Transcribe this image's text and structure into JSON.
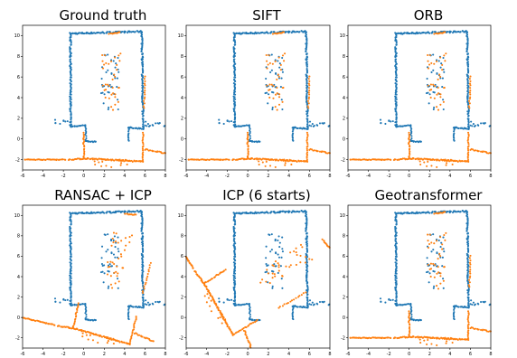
{
  "colors": {
    "reference": "#1f77b4",
    "source": "#ff7f0e"
  },
  "chart_data": [
    {
      "type": "scatter",
      "title": "Ground truth",
      "xlim": [
        -6,
        8
      ],
      "ylim": [
        -3,
        11
      ],
      "xticks": [
        -6,
        -4,
        -2,
        0,
        2,
        4,
        6,
        8
      ],
      "yticks": [
        -2,
        0,
        2,
        4,
        6,
        8,
        10
      ],
      "transform": {
        "rotate_deg": 0,
        "dx": 0,
        "dy": 0,
        "source_visible": true
      }
    },
    {
      "type": "scatter",
      "title": "SIFT",
      "xlim": [
        -6,
        8
      ],
      "ylim": [
        -3,
        11
      ],
      "xticks": [
        -6,
        -4,
        -2,
        0,
        2,
        4,
        6,
        8
      ],
      "yticks": [
        -2,
        0,
        2,
        4,
        6,
        8,
        10
      ],
      "transform": {
        "rotate_deg": 0,
        "dx": 0,
        "dy": 0,
        "source_visible": true
      }
    },
    {
      "type": "scatter",
      "title": "ORB",
      "xlim": [
        -6,
        8
      ],
      "ylim": [
        -3,
        11
      ],
      "xticks": [
        -6,
        -4,
        -2,
        0,
        2,
        4,
        6,
        8
      ],
      "yticks": [
        -2,
        0,
        2,
        4,
        6,
        8,
        10
      ],
      "transform": {
        "rotate_deg": 0,
        "dx": 0,
        "dy": 0,
        "source_visible": true
      }
    },
    {
      "type": "scatter",
      "title": "RANSAC + ICP",
      "xlim": [
        -6,
        8
      ],
      "ylim": [
        -3,
        11
      ],
      "xticks": [
        -6,
        -4,
        -2,
        0,
        2,
        4,
        6,
        8
      ],
      "yticks": [
        -2,
        0,
        2,
        4,
        6,
        8,
        10
      ],
      "transform": {
        "rotate_deg": -13,
        "dx": 0.2,
        "dy": 0.2,
        "source_visible": true
      }
    },
    {
      "type": "scatter",
      "title": "ICP (6 starts)",
      "xlim": [
        -6,
        8
      ],
      "ylim": [
        -3,
        11
      ],
      "xticks": [
        -6,
        -4,
        -2,
        0,
        2,
        4,
        6,
        8
      ],
      "yticks": [
        -2,
        0,
        2,
        4,
        6,
        8,
        10
      ],
      "transform": {
        "rotate_deg": -58,
        "dx": -0.3,
        "dy": 0.6,
        "source_visible": true
      }
    },
    {
      "type": "scatter",
      "title": "Geotransformer",
      "xlim": [
        -6,
        8
      ],
      "ylim": [
        -3,
        11
      ],
      "xticks": [
        -6,
        -4,
        -2,
        0,
        2,
        4,
        6,
        8
      ],
      "yticks": [
        -2,
        0,
        2,
        4,
        6,
        8,
        10
      ],
      "transform": {
        "rotate_deg": 0,
        "dx": 0,
        "dy": 0,
        "source_visible": true
      }
    }
  ]
}
